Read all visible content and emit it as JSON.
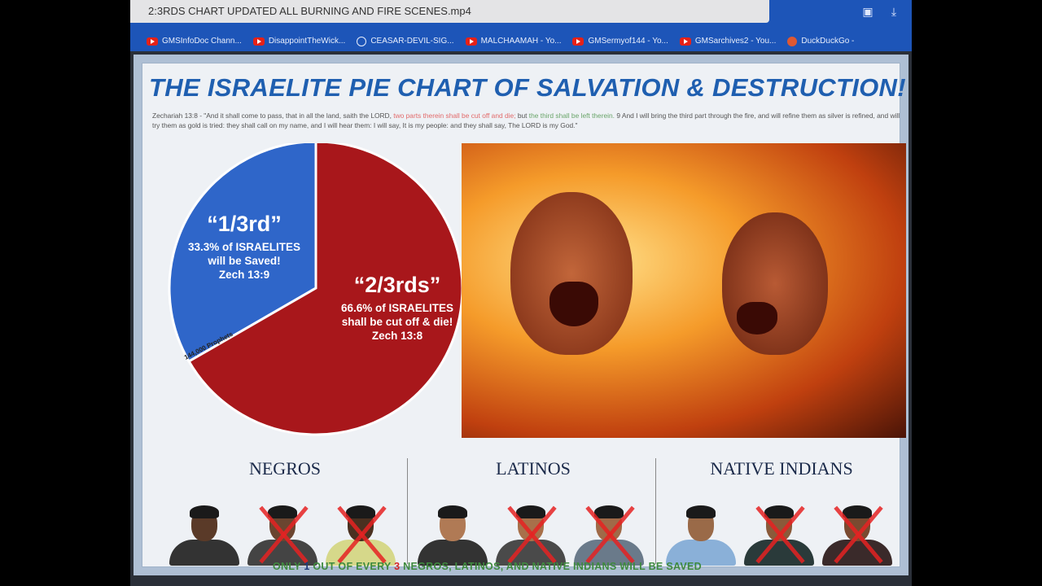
{
  "browser": {
    "address_text": "2:3RDS CHART UPDATED ALL BURNING AND FIRE SCENES.mp4",
    "toolbar_icons": [
      "pocket-icon",
      "download-icon"
    ],
    "bookmarks": [
      {
        "label": "GMSInfoDoc Chann...",
        "icon": "youtube-icon"
      },
      {
        "label": "DisappointTheWick...",
        "icon": "youtube-icon"
      },
      {
        "label": "CEASAR-DEVIL-SIG...",
        "icon": "wordpress-icon"
      },
      {
        "label": "MALCHAAMAH - Yo...",
        "icon": "youtube-icon"
      },
      {
        "label": "GMSermyof144 - Yo...",
        "icon": "youtube-icon"
      },
      {
        "label": "GMSarchives2 - You...",
        "icon": "youtube-icon"
      },
      {
        "label": "DuckDuckGo -",
        "icon": "duckduckgo-icon"
      }
    ]
  },
  "poster": {
    "title": "THE ISRAELITE PIE CHART OF SALVATION & DESTRUCTION!",
    "verse": {
      "part1": "Zechariah 13:8 - \"And it shall come to pass, that in all the land, saith the LORD, ",
      "red": "two parts therein shall be cut off and die;",
      "part2": " but ",
      "green": "the third shall be left therein.",
      "part3": " 9 And I will bring the third part through the fire, and will refine them as silver is refined, and will try them as gold is tried: they shall call on my name, and I will hear them: I will say, It is my people: and they shall say, The LORD is my God.\""
    },
    "pie": {
      "slices": [
        {
          "value": 33.3,
          "color": "#2f66c9",
          "heading": "“1/3rd”",
          "lines": [
            "33.3% of ISRAELITES",
            "will be Saved!",
            "Zech 13:9"
          ]
        },
        {
          "value": 66.6,
          "color": "#a8171b",
          "heading": "“2/3rds”",
          "lines": [
            "66.6% of ISRAELITES",
            "shall be cut off & die!",
            "Zech 13:8"
          ]
        }
      ],
      "band_label": "144,000 Prophets"
    },
    "groups": [
      {
        "title": "NEGROS",
        "crossed": [
          false,
          true,
          true
        ]
      },
      {
        "title": "LATINOS",
        "crossed": [
          false,
          true,
          true
        ]
      },
      {
        "title": "NATIVE INDIANS",
        "crossed": [
          false,
          true,
          true
        ]
      }
    ],
    "footer": {
      "a": "ONLY ",
      "one": "1",
      "b": " OUT OF EVERY ",
      "three": "3",
      "c": " NEGROS, LATINOS, AND NATIVE INDIANS WILL BE SAVED"
    }
  }
}
